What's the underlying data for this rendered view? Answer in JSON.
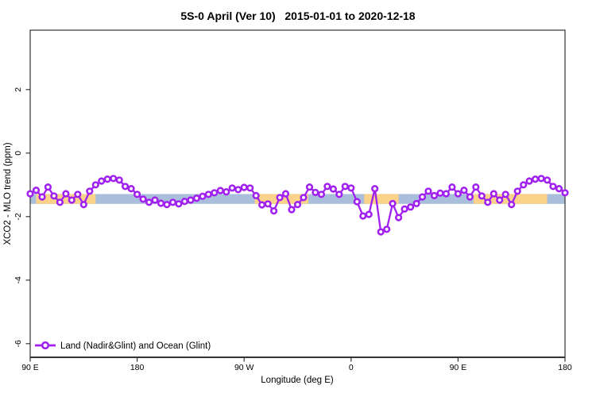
{
  "page": {
    "background": "#ffffff"
  },
  "chart_data": {
    "type": "line",
    "title": "5S-0 April (Ver 10)   2015-01-01 to 2020-12-18",
    "xlabel": "Longitude (deg E)",
    "ylabel": "XCO2 - MLO trend (ppm)",
    "grid": "off",
    "colors": {
      "series": "#a020f0",
      "blue_band": "#a9bedb",
      "orange_band": "#fbd289",
      "axis": "#333333"
    },
    "legend": {
      "position": "bottom-left",
      "entries": [
        {
          "label": "Land (Nadir&Glint) and Ocean (Glint)",
          "color": "#a020f0",
          "marker": "open-circle"
        }
      ]
    },
    "axes": {
      "x": {
        "min": 90,
        "max": 540,
        "ticks": [
          {
            "v": 90,
            "label": "90 E"
          },
          {
            "v": 180,
            "label": "180"
          },
          {
            "v": 270,
            "label": "90 W"
          },
          {
            "v": 360,
            "label": "0"
          },
          {
            "v": 450,
            "label": "90 E"
          },
          {
            "v": 540,
            "label": "180"
          }
        ]
      },
      "y": {
        "min": -6.43,
        "max": 3.87,
        "ticks": [
          {
            "v": -6,
            "label": "-6"
          },
          {
            "v": -4,
            "label": "-4"
          },
          {
            "v": -2,
            "label": "-2"
          },
          {
            "v": 0,
            "label": "0"
          },
          {
            "v": 2,
            "label": "2"
          }
        ]
      }
    },
    "bands": {
      "y_top": -1.29,
      "y_bottom": -1.6,
      "blue_full_range": [
        90,
        540
      ],
      "orange_segments": [
        [
          95,
          145
        ],
        [
          279,
          324
        ],
        [
          371,
          400
        ],
        [
          463,
          525
        ]
      ]
    },
    "series": [
      {
        "name": "Land (Nadir&Glint) and Ocean (Glint)",
        "color": "#a020f0",
        "marker": "open-circle",
        "x": [
          90,
          95,
          100,
          105,
          110,
          115,
          120,
          125,
          130,
          135,
          140,
          145,
          150,
          155,
          160,
          165,
          170,
          175,
          180,
          185,
          190,
          195,
          200,
          205,
          210,
          215,
          220,
          225,
          230,
          235,
          240,
          245,
          250,
          255,
          260,
          265,
          270,
          275,
          280,
          285,
          290,
          295,
          300,
          305,
          310,
          315,
          320,
          325,
          330,
          335,
          340,
          345,
          350,
          355,
          360,
          365,
          370,
          375,
          380,
          385,
          390,
          395,
          400,
          405,
          410,
          415,
          420,
          425,
          430,
          435,
          440,
          445,
          450,
          455,
          460,
          465,
          470,
          475,
          480,
          485,
          490,
          495,
          500,
          505,
          510,
          515,
          520,
          525,
          530,
          535,
          540
        ],
        "y": [
          -1.28,
          -1.17,
          -1.38,
          -1.07,
          -1.35,
          -1.55,
          -1.28,
          -1.48,
          -1.3,
          -1.62,
          -1.2,
          -1.0,
          -0.88,
          -0.82,
          -0.8,
          -0.85,
          -1.05,
          -1.12,
          -1.3,
          -1.45,
          -1.55,
          -1.48,
          -1.58,
          -1.62,
          -1.55,
          -1.6,
          -1.52,
          -1.48,
          -1.42,
          -1.36,
          -1.3,
          -1.25,
          -1.18,
          -1.22,
          -1.1,
          -1.15,
          -1.08,
          -1.1,
          -1.34,
          -1.63,
          -1.6,
          -1.82,
          -1.4,
          -1.28,
          -1.78,
          -1.62,
          -1.4,
          -1.07,
          -1.24,
          -1.3,
          -1.05,
          -1.13,
          -1.3,
          -1.05,
          -1.1,
          -1.53,
          -1.98,
          -1.93,
          -1.12,
          -2.48,
          -2.4,
          -1.59,
          -2.03,
          -1.76,
          -1.7,
          -1.59,
          -1.38,
          -1.2,
          -1.34,
          -1.26,
          -1.28,
          -1.07,
          -1.28,
          -1.17,
          -1.38,
          -1.07,
          -1.35,
          -1.55,
          -1.28,
          -1.48,
          -1.3,
          -1.62,
          -1.2,
          -1.0,
          -0.88,
          -0.82,
          -0.8,
          -0.85,
          -1.05,
          -1.12,
          -1.25
        ]
      }
    ]
  }
}
